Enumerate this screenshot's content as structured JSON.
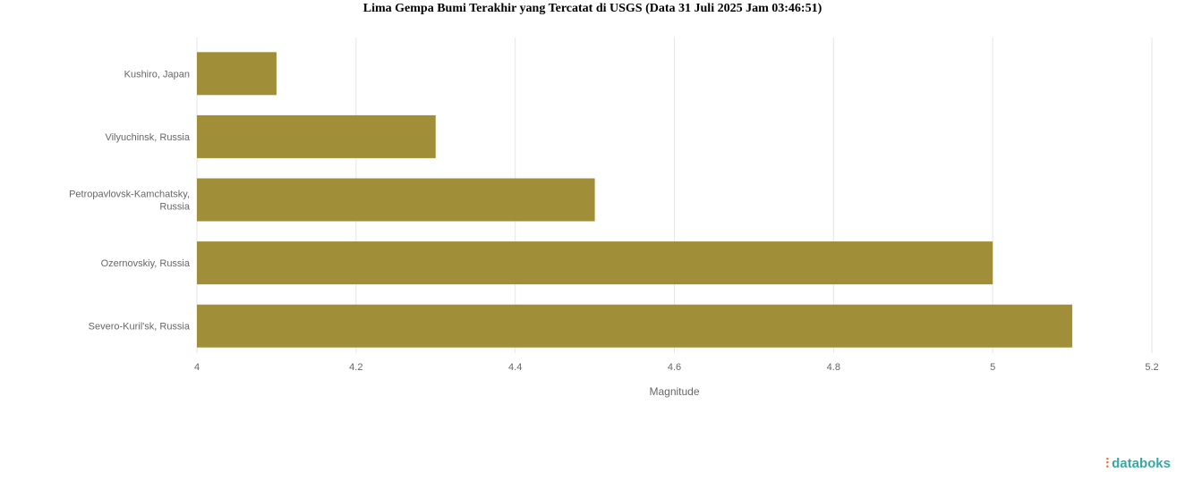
{
  "chart_data": {
    "type": "bar",
    "orientation": "horizontal",
    "title": "Lima Gempa Bumi Terakhir yang Tercatat di USGS (Data 31 Juli 2025 Jam 03:46:51)",
    "categories": [
      "Kushiro, Japan",
      "Vilyuchinsk, Russia",
      "Petropavlovsk-Kamchatsky, Russia",
      "Ozernovskiy, Russia",
      "Severo-Kuril'sk, Russia"
    ],
    "values": [
      4.1,
      4.3,
      4.5,
      5.0,
      5.1
    ],
    "xlabel": "Magnitude",
    "xlim": [
      4,
      5.2
    ],
    "xticks": [
      "4",
      "4.2",
      "4.4",
      "4.6",
      "4.8",
      "5",
      "5.2"
    ],
    "grid": true,
    "bar_color": "#a08e38"
  },
  "brand": {
    "logo": "databoks"
  }
}
